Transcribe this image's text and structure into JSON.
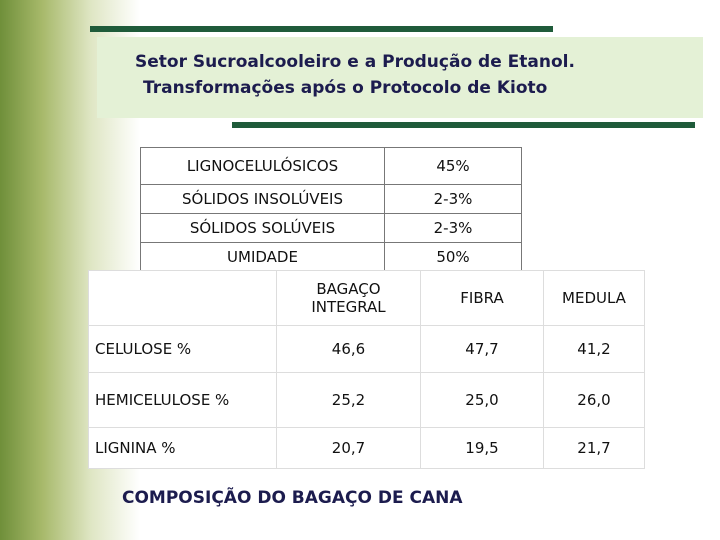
{
  "title": {
    "line1": "Setor Sucroalcooleiro e a Produção de Etanol.",
    "line2": "Transformações após o Protocolo de Kioto"
  },
  "table1": {
    "rows": [
      [
        "LIGNOCELULÓSICOS",
        "45%"
      ],
      [
        "SÓLIDOS INSOLÚVEIS",
        "2-3%"
      ],
      [
        "SÓLIDOS SOLÚVEIS",
        "2-3%"
      ],
      [
        "UMIDADE",
        "50%"
      ]
    ]
  },
  "table2": {
    "header": [
      "BAGAÇO INTEGRAL",
      "FIBRA",
      "MEDULA"
    ],
    "rows": [
      [
        "CELULOSE %",
        "46,6",
        "47,7",
        "41,2"
      ],
      [
        "HEMICELULOSE %",
        "25,2",
        "25,0",
        "26,0"
      ],
      [
        "LIGNINA %",
        "20,7",
        "19,5",
        "21,7"
      ]
    ]
  },
  "caption": "COMPOSIÇÃO DO BAGAÇO DE CANA"
}
